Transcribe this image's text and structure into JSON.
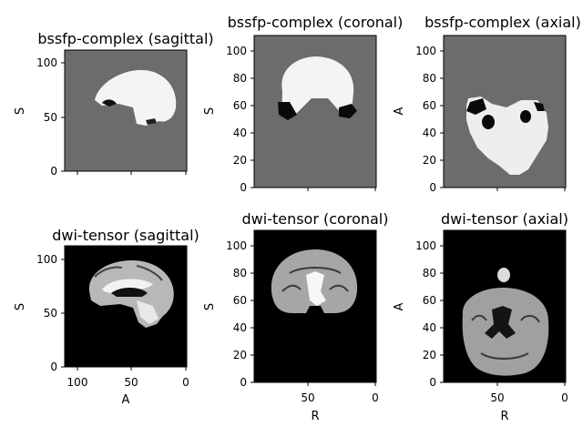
{
  "figure": {
    "panels": [
      {
        "id": "p1",
        "title": "bssfp-complex (sagittal)",
        "ylabel": "S",
        "xlabel": "",
        "bg": "#6c6c6c",
        "yticks": [
          "0",
          "50",
          "100"
        ],
        "xticks": []
      },
      {
        "id": "p2",
        "title": "bssfp-complex (coronal)",
        "ylabel": "S",
        "xlabel": "",
        "bg": "#6c6c6c",
        "yticks": [
          "0",
          "20",
          "40",
          "60",
          "80",
          "100"
        ],
        "xticks": []
      },
      {
        "id": "p3",
        "title": "bssfp-complex (axial)",
        "ylabel": "A",
        "xlabel": "",
        "bg": "#6c6c6c",
        "yticks": [
          "0",
          "20",
          "40",
          "60",
          "80",
          "100"
        ],
        "xticks": []
      },
      {
        "id": "p4",
        "title": "dwi-tensor (sagittal)",
        "ylabel": "S",
        "xlabel": "A",
        "bg": "#000000",
        "yticks": [
          "0",
          "50",
          "100"
        ],
        "xticks": [
          "100",
          "50",
          "0"
        ]
      },
      {
        "id": "p5",
        "title": "dwi-tensor (coronal)",
        "ylabel": "S",
        "xlabel": "R",
        "bg": "#000000",
        "yticks": [
          "0",
          "20",
          "40",
          "60",
          "80",
          "100"
        ],
        "xticks": [
          "50",
          "0"
        ]
      },
      {
        "id": "p6",
        "title": "dwi-tensor (axial)",
        "ylabel": "A",
        "xlabel": "R",
        "bg": "#000000",
        "yticks": [
          "0",
          "20",
          "40",
          "60",
          "80",
          "100"
        ],
        "xticks": [
          "50",
          "0"
        ]
      }
    ],
    "colors": {
      "bssfp_background": "#6c6c6c",
      "dwi_background": "#000000",
      "tissue_bright": "#f4f4f4",
      "tissue_mid": "#9a9a9a"
    }
  }
}
